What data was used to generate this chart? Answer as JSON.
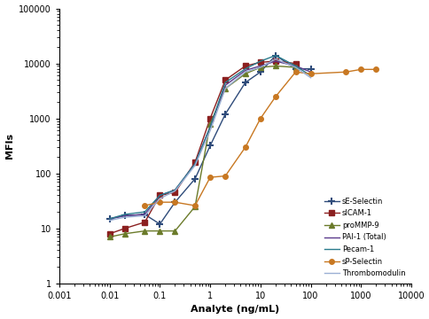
{
  "title": "",
  "xlabel": "Analyte (ng/mL)",
  "ylabel": "MFIs",
  "xlim": [
    0.001,
    10000
  ],
  "ylim": [
    1,
    100000
  ],
  "series": {
    "sE-Selectin": {
      "color": "#2E4B7A",
      "marker": "+",
      "markersize": 6,
      "markeredgewidth": 1.5,
      "x": [
        0.01,
        0.02,
        0.05,
        0.1,
        0.2,
        0.5,
        1,
        2,
        5,
        10,
        20,
        50,
        100
      ],
      "y": [
        15,
        17,
        18,
        12,
        30,
        80,
        320,
        1200,
        4500,
        7000,
        14000,
        8000,
        8000
      ]
    },
    "sICAM-1": {
      "color": "#8B2020",
      "marker": "s",
      "markersize": 4,
      "markeredgewidth": 1,
      "x": [
        0.01,
        0.02,
        0.05,
        0.1,
        0.2,
        0.5,
        1,
        2,
        5,
        10,
        20,
        50
      ],
      "y": [
        8,
        10,
        13,
        40,
        45,
        160,
        1000,
        5000,
        9000,
        10500,
        11000,
        10000
      ]
    },
    "proMMP-9": {
      "color": "#6B7B2A",
      "marker": "^",
      "markersize": 4,
      "markeredgewidth": 1,
      "x": [
        0.01,
        0.02,
        0.05,
        0.1,
        0.2,
        0.5,
        1,
        2,
        5,
        10,
        20,
        50
      ],
      "y": [
        7,
        8,
        9,
        9,
        9,
        25,
        800,
        3500,
        6500,
        8500,
        9000,
        8500
      ]
    },
    "PAI-1 (Total)": {
      "color": "#5B3A8C",
      "marker": "None",
      "markersize": 0,
      "markeredgewidth": 1,
      "x": [
        0.01,
        0.02,
        0.05,
        0.1,
        0.2,
        0.5,
        1,
        2,
        5,
        10,
        20,
        50,
        100
      ],
      "y": [
        15,
        17,
        18,
        40,
        50,
        150,
        700,
        4000,
        7500,
        9000,
        11000,
        9000,
        7000
      ]
    },
    "Pecam-1": {
      "color": "#2A7B8C",
      "marker": "None",
      "markersize": 0,
      "markeredgewidth": 1,
      "x": [
        0.01,
        0.02,
        0.05,
        0.1,
        0.2,
        0.5,
        1,
        2,
        5,
        10,
        20,
        50,
        100
      ],
      "y": [
        15,
        18,
        20,
        40,
        50,
        150,
        700,
        4500,
        8000,
        11000,
        14000,
        9000,
        6000
      ]
    },
    "sP-Selectin": {
      "color": "#C87822",
      "marker": "o",
      "markersize": 4,
      "markeredgewidth": 1,
      "x": [
        0.05,
        0.1,
        0.2,
        0.5,
        1,
        2,
        5,
        10,
        20,
        50,
        100,
        500,
        1000,
        2000
      ],
      "y": [
        26,
        30,
        30,
        26,
        85,
        90,
        300,
        1000,
        2500,
        7000,
        6500,
        7000,
        7800,
        7800
      ]
    },
    "Thrombomodulin": {
      "color": "#9BAFD4",
      "marker": "None",
      "markersize": 0,
      "markeredgewidth": 1,
      "x": [
        0.01,
        0.02,
        0.05,
        0.1,
        0.2,
        0.5,
        1,
        2,
        5,
        10,
        20,
        50,
        100
      ],
      "y": [
        14,
        16,
        17,
        35,
        48,
        140,
        600,
        3500,
        7000,
        8500,
        12000,
        8500,
        5500
      ]
    }
  },
  "legend_order": [
    "sE-Selectin",
    "sICAM-1",
    "proMMP-9",
    "PAI-1 (Total)",
    "Pecam-1",
    "sP-Selectin",
    "Thrombomodulin"
  ]
}
